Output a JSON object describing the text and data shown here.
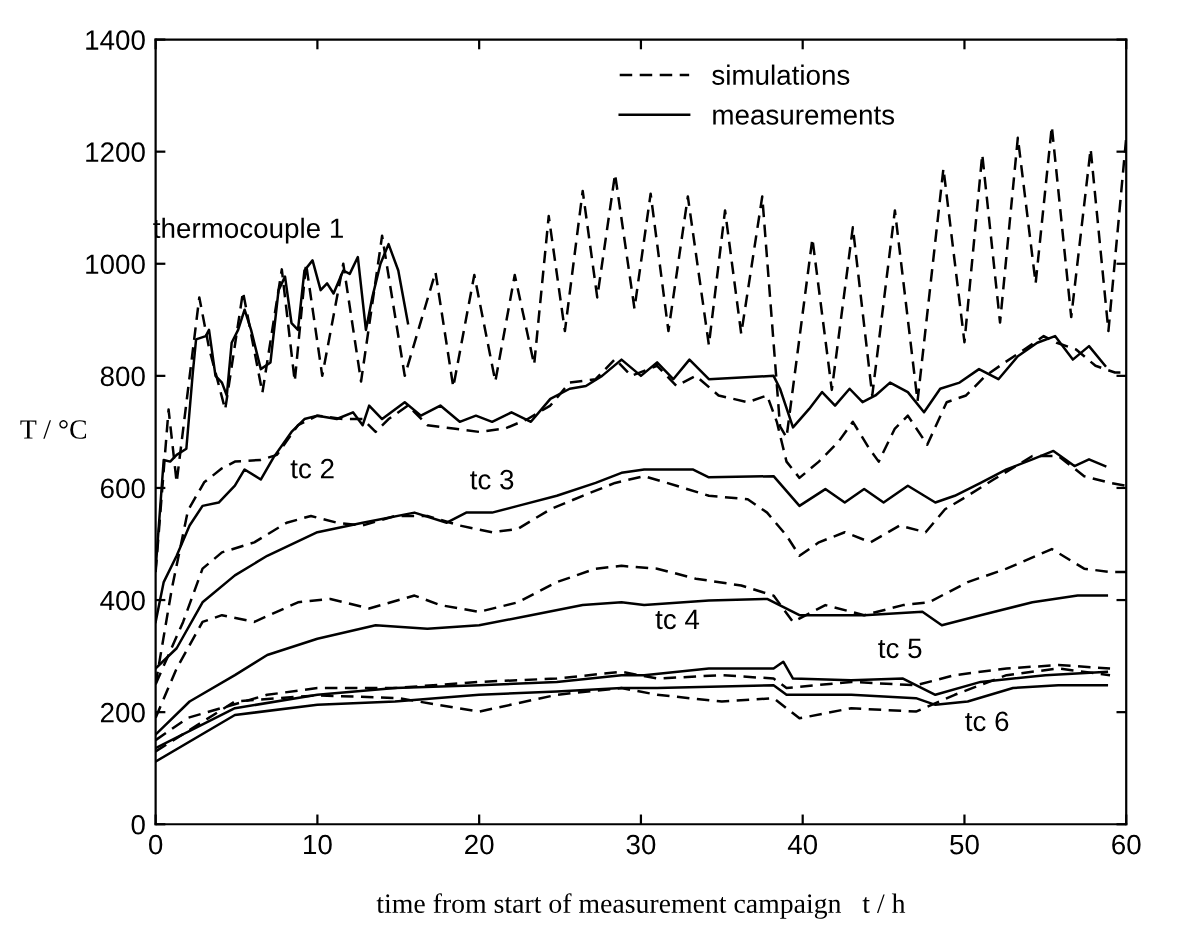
{
  "chart_data": {
    "type": "line",
    "xlabel": "time from start of measurement campaign   t / h",
    "ylabel": "T / °C",
    "xlim": [
      0,
      60
    ],
    "xticks": [
      0,
      10,
      20,
      30,
      40,
      50,
      60
    ],
    "ylim": [
      0,
      1400
    ],
    "yticks": [
      0,
      200,
      400,
      600,
      800,
      1000,
      1200,
      1400
    ],
    "grid": false,
    "legend": "top",
    "marker": "none",
    "series": [
      {
        "name": "simulations",
        "color": "#000000",
        "line_style": "dashed",
        "x": [
          0,
          0.8,
          1.3,
          2.7,
          3.3,
          4.3,
          5.4,
          6.6,
          7.8,
          8.6,
          9.3,
          10.3,
          11.6,
          12.7,
          14.0,
          15.4,
          17.3,
          18.4,
          19.7,
          21.0,
          22.2,
          23.4,
          24.3,
          25.3,
          26.4,
          27.3,
          28.4,
          29.6,
          30.6,
          31.7,
          32.9,
          34.2,
          35.2,
          36.2,
          37.5,
          38.6,
          39.0,
          40.6,
          41.8,
          43.1,
          44.3,
          45.7,
          47.1,
          48.7,
          50.0,
          51.1,
          52.2,
          53.3,
          54.4,
          55.4,
          56.6,
          57.8,
          58.9,
          60
        ],
        "values": [
          450,
          740,
          610,
          940,
          850,
          740,
          950,
          770,
          990,
          790,
          1000,
          800,
          1000,
          790,
          1050,
          800,
          985,
          780,
          980,
          790,
          980,
          820,
          1085,
          880,
          1130,
          940,
          1160,
          920,
          1125,
          880,
          1120,
          855,
          1095,
          875,
          1120,
          710,
          690,
          1045,
          775,
          1065,
          765,
          1095,
          755,
          1170,
          860,
          1195,
          895,
          1225,
          965,
          1245,
          905,
          1205,
          880,
          1225
        ]
      },
      {
        "name": "measurements",
        "color": "#000000",
        "line_style": "solid",
        "x": [
          0,
          0.5,
          0.9,
          1.3,
          1.9,
          2.3,
          2.5,
          3.1,
          3.3,
          3.7,
          4.1,
          4.4,
          4.7,
          5.1,
          5.5,
          5.9,
          6.5,
          7.1,
          7.6,
          8.0,
          8.4,
          8.8,
          9.2,
          9.7,
          10.2,
          10.6,
          11.0,
          11.6,
          12.0,
          12.5,
          13.0,
          13.4,
          13.9,
          14.4,
          15.0,
          15.6
        ],
        "values": [
          455,
          650,
          647,
          659,
          670,
          806,
          865,
          871,
          882,
          800,
          788,
          765,
          859,
          882,
          918,
          882,
          812,
          824,
          953,
          977,
          894,
          882,
          988,
          1006,
          953,
          965,
          947,
          988,
          982,
          1012,
          882,
          941,
          1000,
          1035,
          988,
          894
        ]
      },
      {
        "color": "#000000",
        "line_style": "solid",
        "x": [
          0,
          0.5,
          1.3,
          2.1,
          2.9,
          3.9,
          4.9,
          5.5,
          6.5,
          7.3,
          8.4,
          9.2,
          10.0,
          11.2,
          12.2,
          12.8,
          13.2,
          14.0,
          15.4,
          16.4,
          17.6,
          18.8,
          19.8,
          20.8,
          22.0,
          23.2,
          24.4,
          25.6,
          26.6,
          27.6,
          28.8,
          30.0,
          31.0,
          32.0,
          33.0,
          34.2,
          38.2,
          38.6,
          39.4,
          40.4,
          41.2,
          42.0,
          42.9,
          43.7,
          44.5,
          45.4,
          46.5,
          47.5,
          48.5,
          49.7,
          50.9,
          52.1,
          53.3,
          54.5,
          55.6,
          56.7,
          57.7,
          58.7
        ],
        "values": [
          361,
          432,
          479,
          533,
          568,
          574,
          604,
          633,
          615,
          655,
          700,
          723,
          729,
          723,
          735,
          712,
          747,
          723,
          753,
          729,
          747,
          718,
          729,
          718,
          735,
          718,
          759,
          777,
          782,
          800,
          829,
          800,
          824,
          794,
          829,
          794,
          800,
          777,
          708,
          741,
          771,
          747,
          777,
          753,
          765,
          788,
          771,
          735,
          777,
          788,
          812,
          794,
          835,
          859,
          871,
          829,
          853,
          818
        ]
      },
      {
        "color": "#000000",
        "line_style": "dashed",
        "x": [
          0,
          1,
          2,
          3,
          4.1,
          4.9,
          6.5,
          7.5,
          8.8,
          10,
          11.6,
          12.8,
          13.6,
          14.4,
          15.6,
          16.8,
          18.4,
          20,
          21.6,
          23,
          24.4,
          25.6,
          27.2,
          28.4,
          29.4,
          31,
          32.2,
          33.4,
          34.8,
          36.6,
          37.8,
          38.4,
          39,
          39.8,
          41,
          42.2,
          43.1,
          44.1,
          44.7,
          45.7,
          46.5,
          47.7,
          48.9,
          50.1,
          51.3,
          52.5,
          53.7,
          54.9,
          55.7,
          56.9,
          58.1,
          59.3,
          60
        ],
        "values": [
          250,
          420,
          560,
          610,
          635,
          647,
          650,
          659,
          712,
          729,
          723,
          723,
          700,
          723,
          747,
          712,
          706,
          700,
          706,
          723,
          747,
          788,
          794,
          830,
          800,
          818,
          782,
          800,
          765,
          753,
          765,
          718,
          647,
          618,
          647,
          682,
          718,
          671,
          647,
          706,
          729,
          677,
          753,
          765,
          800,
          824,
          847,
          871,
          859,
          847,
          818,
          806,
          806
        ]
      },
      {
        "color": "#000000",
        "line_style": "solid",
        "x": [
          0,
          1.3,
          2.9,
          4.9,
          6.9,
          10,
          12.8,
          16,
          18,
          19.2,
          20.8,
          22.4,
          24.8,
          27.2,
          28.8,
          30.2,
          33.2,
          34.2,
          38.2,
          39.8,
          41.4,
          42.6,
          43.8,
          45,
          46.5,
          48.2,
          49.4,
          51,
          52.6,
          54.2,
          55.5,
          56.8,
          57.7,
          58.7
        ],
        "values": [
          278,
          314,
          396,
          444,
          479,
          521,
          538,
          556,
          538,
          556,
          556,
          568,
          586,
          609,
          627,
          633,
          633,
          619,
          621,
          568,
          598,
          574,
          598,
          574,
          604,
          574,
          586,
          609,
          633,
          651,
          666,
          639,
          651,
          639
        ]
      },
      {
        "color": "#000000",
        "line_style": "dashed",
        "x": [
          0,
          1.7,
          2.9,
          4.1,
          6.1,
          8.1,
          9.6,
          11.2,
          12.8,
          14.8,
          16.8,
          18.8,
          20.8,
          22.4,
          24.4,
          26.4,
          28.4,
          30.2,
          32.2,
          34.2,
          36.6,
          37.8,
          39,
          39.8,
          41,
          42.6,
          44.2,
          46,
          47.6,
          48.8,
          50.2,
          51.8,
          54.2,
          55.8,
          57.4,
          59,
          60
        ],
        "values": [
          250,
          361,
          456,
          485,
          503,
          538,
          550,
          538,
          533,
          550,
          550,
          533,
          521,
          527,
          562,
          586,
          609,
          621,
          604,
          586,
          580,
          556,
          515,
          479,
          503,
          521,
          503,
          533,
          521,
          562,
          586,
          615,
          657,
          657,
          621,
          609,
          604
        ]
      },
      {
        "color": "#000000",
        "line_style": "solid",
        "x": [
          0,
          2.1,
          4.9,
          6.9,
          10,
          13.6,
          16.8,
          20,
          23.2,
          26.4,
          28.8,
          30.2,
          34.2,
          37.8,
          39.8,
          43.8,
          47.4,
          48.6,
          51,
          54.2,
          57,
          58.8
        ],
        "values": [
          160,
          219,
          266,
          302,
          331,
          355,
          349,
          355,
          373,
          391,
          396,
          391,
          399,
          402,
          373,
          373,
          379,
          355,
          373,
          396,
          408,
          408
        ]
      },
      {
        "color": "#000000",
        "line_style": "dashed",
        "x": [
          0,
          1.3,
          2.9,
          4.1,
          6.1,
          8.8,
          10.8,
          13.2,
          16,
          17.6,
          20,
          22.4,
          24.8,
          27.2,
          28.8,
          31,
          33.4,
          36.2,
          38.2,
          39.4,
          41.4,
          43.8,
          46.2,
          47.8,
          50.2,
          52.6,
          55.4,
          57.4,
          59,
          60
        ],
        "values": [
          190,
          278,
          361,
          373,
          361,
          396,
          402,
          385,
          408,
          391,
          379,
          396,
          432,
          456,
          461,
          456,
          438,
          426,
          408,
          361,
          391,
          373,
          391,
          396,
          432,
          456,
          491,
          456,
          450,
          450
        ]
      },
      {
        "color": "#000000",
        "line_style": "solid",
        "x": [
          0,
          4.9,
          10,
          14.8,
          20,
          24.8,
          28.8,
          30.2,
          34.2,
          38.2,
          38.8,
          39.4,
          43,
          46.2,
          48.2,
          51,
          55,
          58.8
        ],
        "values": [
          136,
          207,
          231,
          243,
          248,
          254,
          266,
          266,
          278,
          278,
          290,
          260,
          257,
          260,
          231,
          254,
          266,
          272
        ]
      },
      {
        "color": "#000000",
        "line_style": "dashed",
        "x": [
          0,
          2,
          6.9,
          10,
          14.8,
          20,
          24.8,
          28.8,
          31,
          35,
          38.2,
          39,
          43,
          47,
          49.4,
          52.6,
          55.8,
          59
        ],
        "values": [
          150,
          190,
          231,
          243,
          243,
          254,
          260,
          272,
          260,
          266,
          260,
          243,
          254,
          248,
          266,
          278,
          284,
          278
        ]
      },
      {
        "color": "#000000",
        "line_style": "solid",
        "x": [
          0,
          4.9,
          10,
          14.8,
          20,
          24.8,
          28.8,
          31,
          38.2,
          39,
          43,
          47,
          48.2,
          50.2,
          53,
          55.8,
          58.8
        ],
        "values": [
          112,
          195,
          213,
          219,
          231,
          237,
          243,
          243,
          248,
          231,
          231,
          225,
          213,
          219,
          243,
          248,
          248
        ]
      },
      {
        "color": "#000000",
        "line_style": "dashed",
        "x": [
          0,
          4.9,
          10,
          15,
          20,
          24.8,
          28.8,
          31,
          35,
          38.2,
          39.8,
          43,
          47,
          49.4,
          52.6,
          55.8,
          59
        ],
        "values": [
          130,
          219,
          230,
          225,
          201,
          231,
          243,
          231,
          219,
          225,
          189,
          207,
          201,
          231,
          266,
          278,
          266
        ]
      }
    ],
    "annotations": [
      {
        "text": "thermocouple 1",
        "x": 5.4,
        "y": 950
      },
      {
        "text": "tc 2",
        "x": 7.3,
        "y": 655
      },
      {
        "text": "tc 3",
        "x": 20.8,
        "y": 556
      },
      {
        "text": "tc 4",
        "x": 30.2,
        "y": 391
      },
      {
        "text": "tc 5",
        "x": 47.4,
        "y": 379
      },
      {
        "text": "tc 6",
        "x": 50.2,
        "y": 219
      }
    ]
  }
}
